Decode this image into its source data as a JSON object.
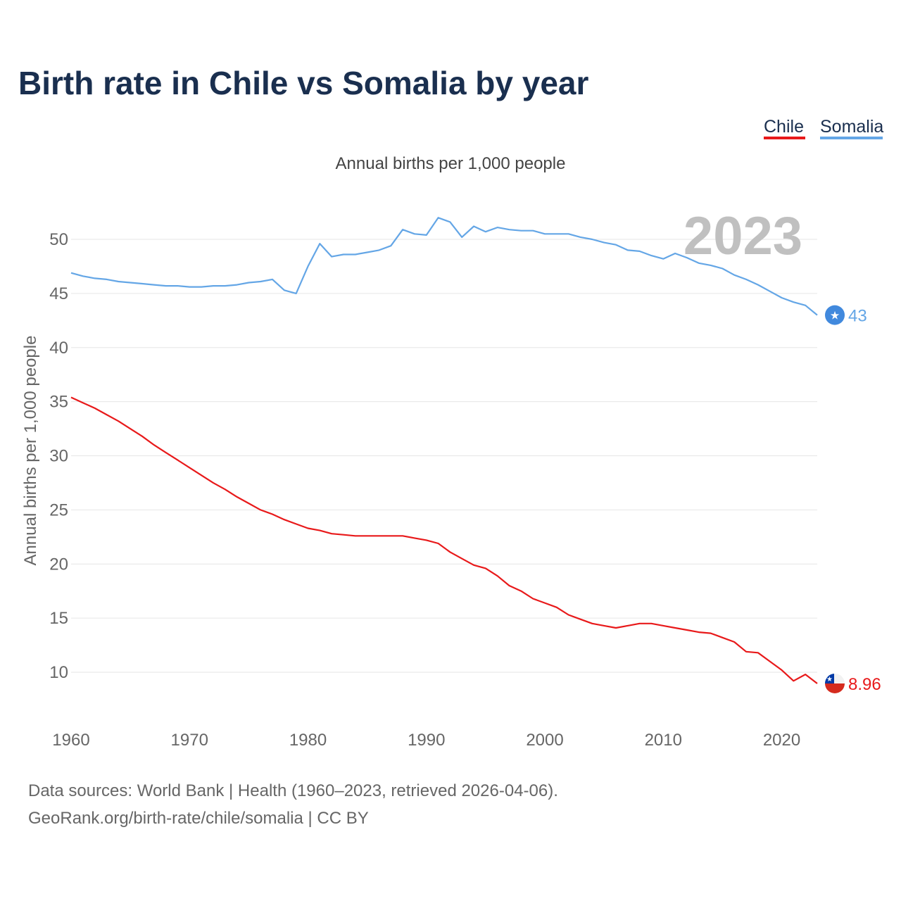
{
  "title": "Birth rate in Chile vs Somalia by year",
  "subtitle": "Annual births per 1,000 people",
  "year_watermark": "2023",
  "legend": [
    {
      "label": "Chile",
      "color": "#e8191a"
    },
    {
      "label": "Somalia",
      "color": "#64a6e6"
    }
  ],
  "footer": {
    "line1": "Data sources: World Bank | Health (1960–2023, retrieved 2026-04-06).",
    "line2": "GeoRank.org/birth-rate/chile/somalia | CC BY"
  },
  "chart_data": {
    "type": "line",
    "title": "Birth rate in Chile vs Somalia by year",
    "subtitle": "Annual births per 1,000 people",
    "xlabel": "",
    "ylabel": "Annual births per 1,000 people",
    "xlim": [
      1960,
      2023
    ],
    "ylim": [
      6,
      54
    ],
    "x_ticks": [
      1960,
      1970,
      1980,
      1990,
      2000,
      2010,
      2020
    ],
    "y_ticks": [
      10,
      15,
      20,
      25,
      30,
      35,
      40,
      45,
      50
    ],
    "grid": true,
    "legend_position": "top-right",
    "x": [
      1960,
      1961,
      1962,
      1963,
      1964,
      1965,
      1966,
      1967,
      1968,
      1969,
      1970,
      1971,
      1972,
      1973,
      1974,
      1975,
      1976,
      1977,
      1978,
      1979,
      1980,
      1981,
      1982,
      1983,
      1984,
      1985,
      1986,
      1987,
      1988,
      1989,
      1990,
      1991,
      1992,
      1993,
      1994,
      1995,
      1996,
      1997,
      1998,
      1999,
      2000,
      2001,
      2002,
      2003,
      2004,
      2005,
      2006,
      2007,
      2008,
      2009,
      2010,
      2011,
      2012,
      2013,
      2014,
      2015,
      2016,
      2017,
      2018,
      2019,
      2020,
      2021,
      2022,
      2023
    ],
    "series": [
      {
        "name": "Chile",
        "color": "#e8191a",
        "end_label": "8.96",
        "values": [
          35.4,
          34.9,
          34.4,
          33.8,
          33.2,
          32.5,
          31.8,
          31.0,
          30.3,
          29.6,
          28.9,
          28.2,
          27.5,
          26.9,
          26.2,
          25.6,
          25.0,
          24.6,
          24.1,
          23.7,
          23.3,
          23.1,
          22.8,
          22.7,
          22.6,
          22.6,
          22.6,
          22.6,
          22.6,
          22.4,
          22.2,
          21.9,
          21.1,
          20.5,
          19.9,
          19.6,
          18.9,
          18.0,
          17.5,
          16.8,
          16.4,
          16.0,
          15.3,
          14.9,
          14.5,
          14.3,
          14.1,
          14.3,
          14.5,
          14.5,
          14.3,
          14.1,
          13.9,
          13.7,
          13.6,
          13.2,
          12.8,
          11.9,
          11.8,
          11.0,
          10.2,
          9.2,
          9.8,
          8.96
        ]
      },
      {
        "name": "Somalia",
        "color": "#64a6e6",
        "end_label": "43",
        "values": [
          46.9,
          46.6,
          46.4,
          46.3,
          46.1,
          46.0,
          45.9,
          45.8,
          45.7,
          45.7,
          45.6,
          45.6,
          45.7,
          45.7,
          45.8,
          46.0,
          46.1,
          46.3,
          45.3,
          45.0,
          47.5,
          49.6,
          48.4,
          48.6,
          48.6,
          48.8,
          49.0,
          49.4,
          50.9,
          50.5,
          50.4,
          52.0,
          51.6,
          50.2,
          51.2,
          50.7,
          51.1,
          50.9,
          50.8,
          50.8,
          50.5,
          50.5,
          50.5,
          50.2,
          50.0,
          49.7,
          49.5,
          49.0,
          48.9,
          48.5,
          48.2,
          48.7,
          48.3,
          47.8,
          47.6,
          47.3,
          46.7,
          46.3,
          45.8,
          45.2,
          44.6,
          44.2,
          43.9,
          43.0
        ]
      }
    ]
  }
}
